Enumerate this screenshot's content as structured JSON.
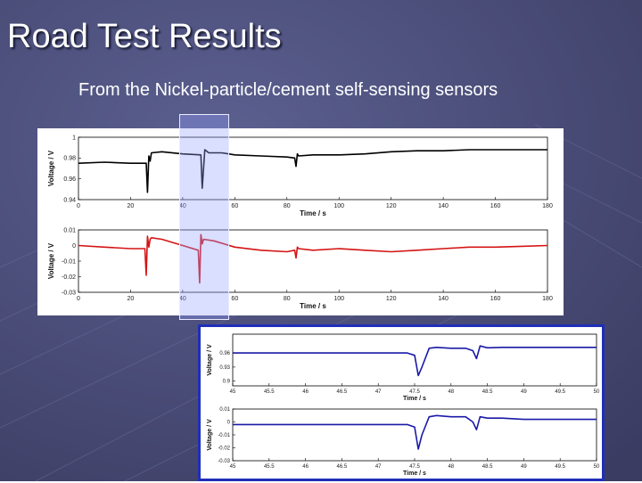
{
  "slide": {
    "title": "Road Test Results",
    "subtitle": "From the Nickel-particle/cement self-sensing sensors"
  },
  "colors": {
    "background": "#4a4d78",
    "series_black": "#000000",
    "series_red": "#d41414",
    "series_blue": "#1a1aa8",
    "highlight": "#aab4ff",
    "zoom_border": "#1f2fb8"
  },
  "chart_data": [
    {
      "type": "line",
      "xlabel": "Time / s",
      "ylabel": "Voltage / V",
      "xlim": [
        0,
        180
      ],
      "ylim": [
        0.94,
        1.0
      ],
      "xticks": [
        0,
        20,
        40,
        60,
        80,
        100,
        120,
        140,
        160,
        180
      ],
      "yticks": [
        0.94,
        0.96,
        0.98,
        1
      ],
      "yticklabels": [
        "0.94",
        "0.96",
        "0.98",
        "1"
      ],
      "series": [
        {
          "color": "#000000",
          "x": [
            0,
            10,
            20,
            26,
            26.5,
            27,
            27.5,
            28,
            32,
            40,
            47,
            47.5,
            48.5,
            50,
            55,
            60,
            70,
            80,
            83,
            83.5,
            84,
            84.5,
            90,
            100,
            110,
            120,
            130,
            140,
            150,
            160,
            170,
            180
          ],
          "y": [
            0.975,
            0.976,
            0.975,
            0.975,
            0.947,
            0.982,
            0.977,
            0.985,
            0.986,
            0.984,
            0.983,
            0.951,
            0.988,
            0.985,
            0.985,
            0.983,
            0.982,
            0.981,
            0.98,
            0.972,
            0.984,
            0.982,
            0.983,
            0.983,
            0.984,
            0.986,
            0.987,
            0.987,
            0.988,
            0.988,
            0.988,
            0.988
          ]
        }
      ]
    },
    {
      "type": "line",
      "xlabel": "Time / s",
      "ylabel": "Voltage / V",
      "xlim": [
        0,
        180
      ],
      "ylim": [
        -0.03,
        0.01
      ],
      "xticks": [
        0,
        20,
        40,
        60,
        80,
        100,
        120,
        140,
        160,
        180
      ],
      "yticks": [
        -0.03,
        -0.02,
        -0.01,
        0,
        0.01
      ],
      "yticklabels": [
        "-0.03",
        "-0.02",
        "-0.01",
        "0",
        "0.01"
      ],
      "series": [
        {
          "color": "#d41414",
          "x": [
            0,
            10,
            20,
            25.5,
            26,
            26.5,
            27,
            27.5,
            28,
            32,
            40,
            46,
            46.5,
            47,
            47.5,
            48,
            52,
            60,
            70,
            80,
            83,
            83.5,
            84,
            84.5,
            90,
            100,
            110,
            120,
            130,
            140,
            150,
            160,
            170,
            180
          ],
          "y": [
            0.0,
            -0.001,
            -0.002,
            -0.002,
            -0.019,
            0.006,
            -0.001,
            0.004,
            0.005,
            0.004,
            0.0,
            -0.003,
            -0.024,
            0.007,
            0.001,
            0.004,
            0.003,
            -0.001,
            -0.003,
            -0.004,
            -0.003,
            -0.008,
            -0.001,
            -0.002,
            -0.003,
            -0.002,
            -0.003,
            -0.004,
            -0.003,
            -0.002,
            -0.001,
            -0.001,
            -0.0005,
            0.0
          ]
        }
      ]
    },
    {
      "type": "line",
      "xlabel": "Time / s",
      "ylabel": "Voltage / V",
      "xlim": [
        45,
        50
      ],
      "ylim": [
        0.89,
        1.0
      ],
      "xticks": [
        45,
        45.5,
        46,
        46.5,
        47,
        47.5,
        48,
        48.5,
        49,
        49.5,
        50
      ],
      "xticklabels": [
        "45",
        "45.5",
        "46",
        "46.5",
        "47",
        "47.5",
        "48",
        "48.5",
        "49",
        "49.5",
        "50"
      ],
      "yticks": [
        0.9,
        0.93,
        0.96
      ],
      "yticklabels": [
        "0.9",
        "0.93",
        "0.96"
      ],
      "series": [
        {
          "color": "#1a1aa8",
          "x": [
            45,
            45.5,
            46,
            46.5,
            47,
            47.4,
            47.5,
            47.55,
            47.6,
            47.7,
            47.8,
            48,
            48.2,
            48.3,
            48.35,
            48.4,
            48.5,
            48.7,
            49,
            49.5,
            50
          ],
          "y": [
            0.96,
            0.96,
            0.96,
            0.96,
            0.96,
            0.96,
            0.955,
            0.912,
            0.93,
            0.97,
            0.972,
            0.97,
            0.97,
            0.965,
            0.948,
            0.975,
            0.971,
            0.972,
            0.972,
            0.972,
            0.972
          ]
        }
      ]
    },
    {
      "type": "line",
      "xlabel": "Time / s",
      "ylabel": "Voltage / V",
      "xlim": [
        45,
        50
      ],
      "ylim": [
        -0.03,
        0.01
      ],
      "xticks": [
        45,
        45.5,
        46,
        46.5,
        47,
        47.5,
        48,
        48.5,
        49,
        49.5,
        50
      ],
      "xticklabels": [
        "45",
        "45.5",
        "46",
        "46.5",
        "47",
        "47.5",
        "48",
        "48.5",
        "49",
        "49.5",
        "50"
      ],
      "yticks": [
        -0.03,
        -0.02,
        -0.01,
        0,
        0.01
      ],
      "yticklabels": [
        "-0.03",
        "-0.02",
        "-0.01",
        "0",
        "0.01"
      ],
      "series": [
        {
          "color": "#1a1aa8",
          "x": [
            45,
            45.5,
            46,
            46.5,
            47,
            47.4,
            47.5,
            47.55,
            47.6,
            47.7,
            47.8,
            48,
            48.2,
            48.3,
            48.35,
            48.4,
            48.5,
            48.7,
            49,
            49.5,
            50
          ],
          "y": [
            -0.002,
            -0.002,
            -0.002,
            -0.002,
            -0.002,
            -0.002,
            -0.004,
            -0.021,
            -0.01,
            0.004,
            0.005,
            0.004,
            0.004,
            0.0,
            -0.006,
            0.004,
            0.003,
            0.003,
            0.002,
            0.002,
            0.002
          ]
        }
      ]
    }
  ]
}
